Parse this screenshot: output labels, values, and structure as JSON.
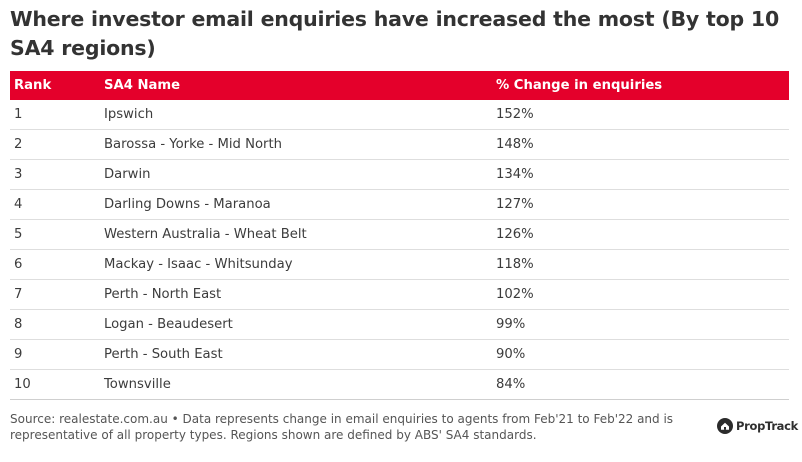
{
  "title": "Where investor email enquiries have increased the most (By top 10 SA4 regions)",
  "table": {
    "headers": [
      "Rank",
      "SA4 Name",
      "% Change in enquiries"
    ],
    "rows": [
      [
        "1",
        "Ipswich",
        "152%"
      ],
      [
        "2",
        "Barossa - Yorke - Mid North",
        "148%"
      ],
      [
        "3",
        "Darwin",
        "134%"
      ],
      [
        "4",
        "Darling Downs - Maranoa",
        "127%"
      ],
      [
        "5",
        "Western Australia - Wheat Belt",
        "126%"
      ],
      [
        "6",
        "Mackay - Isaac - Whitsunday",
        "118%"
      ],
      [
        "7",
        "Perth - North East",
        "102%"
      ],
      [
        "8",
        "Logan - Beaudesert",
        "99%"
      ],
      [
        "9",
        "Perth - South East",
        "90%"
      ],
      [
        "10",
        "Townsville",
        "84%"
      ]
    ]
  },
  "footer": "Source: realestate.com.au • Data represents change in email enquiries to agents from Feb'21 to Feb'22 and is representative of all property types. Regions shown are defined by ABS' SA4 standards.",
  "brand": {
    "name": "PropTrack",
    "icon": "proptrack-logo-icon"
  },
  "colors": {
    "header_bg": "#e4002b",
    "header_text": "#ffffff",
    "row_divider": "#dedede"
  }
}
